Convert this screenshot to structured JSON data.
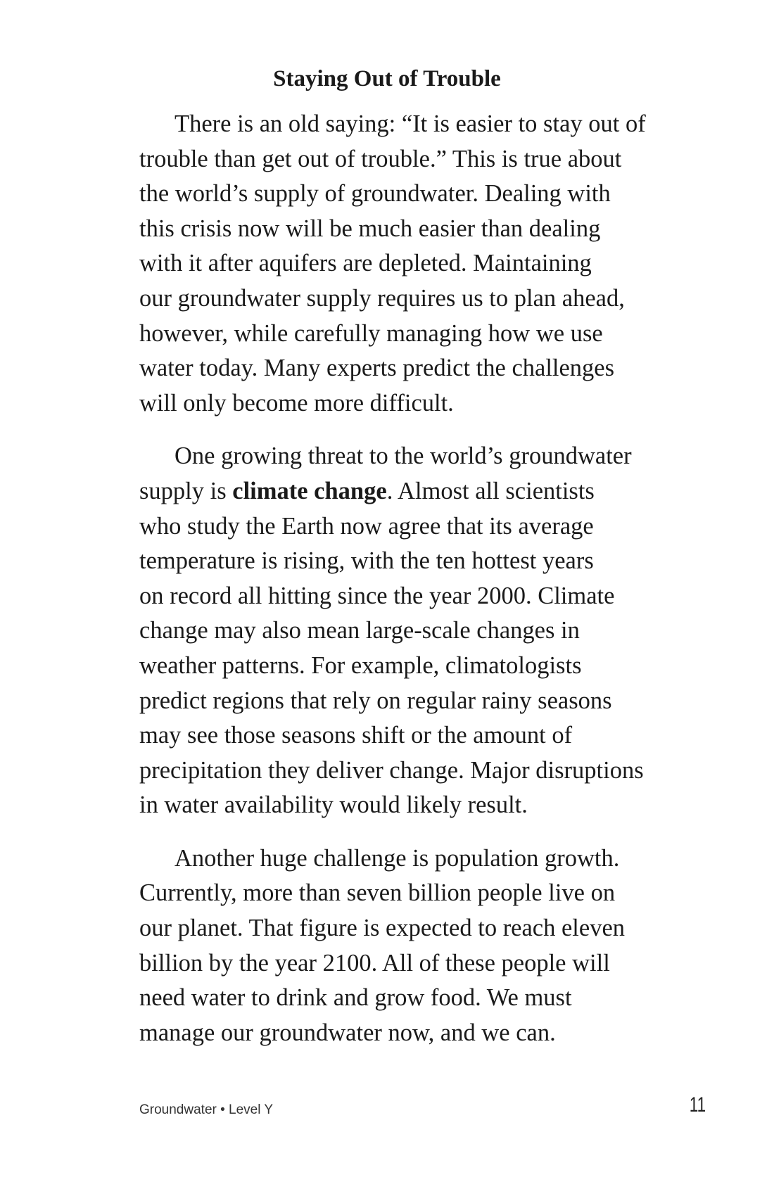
{
  "heading": "Staying Out of Trouble",
  "paragraphs": [
    {
      "lines": [
        "There is an old saying: “It is easier to stay out of",
        "trouble than get out of trouble.” This is true about",
        "the world’s supply of groundwater. Dealing with",
        "this crisis now will be much easier than dealing",
        "with it after aquifers are depleted. Maintaining",
        "our groundwater supply requires us to plan ahead,",
        "however, while carefully managing how we use",
        "water today. Many experts predict the challenges",
        "will only become more difficult."
      ]
    },
    {
      "line1": "One growing threat to the world’s groundwater",
      "line2_before": "supply is ",
      "line2_bold": "climate change",
      "line2_after": ". Almost all scientists",
      "lines": [
        "who study the Earth now agree that its average",
        "temperature is rising, with the ten hottest years",
        "on record all hitting since the year 2000. Climate",
        "change may also mean large-scale changes in",
        "weather patterns. For example, climatologists",
        "predict regions that rely on regular rainy seasons",
        "may see those seasons shift or the amount of",
        "precipitation they deliver change. Major disruptions",
        "in water availability would likely result."
      ]
    },
    {
      "lines": [
        "Another huge challenge is population growth.",
        "Currently, more than seven billion people live on",
        "our planet. That figure is expected to reach eleven",
        "billion by the year 2100. All of these people will",
        "need water to drink and grow food. We must",
        "manage our groundwater now, and we can."
      ]
    }
  ],
  "footer": {
    "book_info": "Groundwater • Level Y",
    "page_number": "11"
  }
}
